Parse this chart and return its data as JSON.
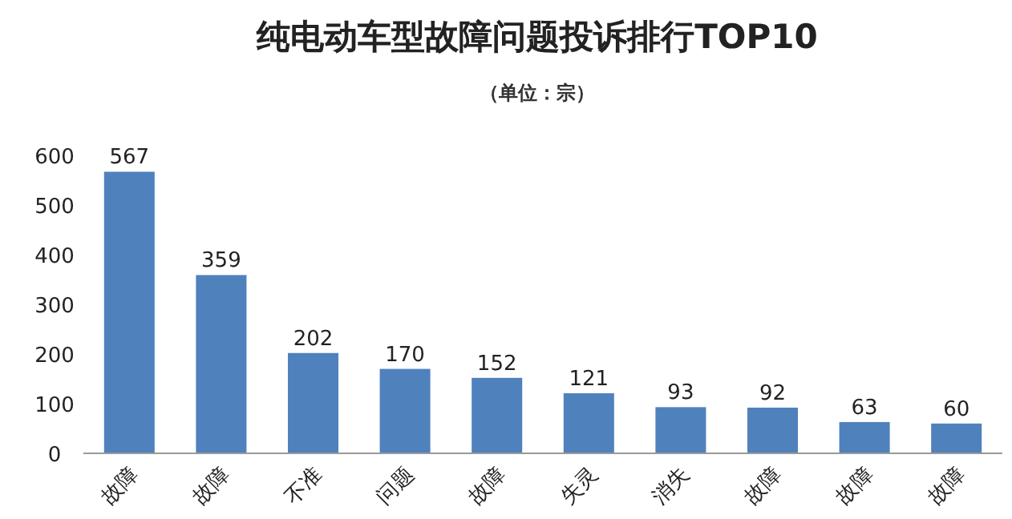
{
  "chart_data": {
    "type": "bar",
    "title": "纯电动车型故障问题投诉排行TOP10",
    "subtitle": "（单位：宗）",
    "categories": [
      "故障",
      "故障",
      "不准",
      "问题",
      "故障",
      "失灵",
      "消失",
      "故障",
      "故障",
      "故障"
    ],
    "values": [
      567,
      359,
      202,
      170,
      152,
      121,
      93,
      92,
      63,
      60
    ],
    "color": "#4f81bd",
    "ylim": [
      0,
      600
    ],
    "yticks": [
      0,
      100,
      200,
      300,
      400,
      500,
      600
    ],
    "data_labels": true
  }
}
